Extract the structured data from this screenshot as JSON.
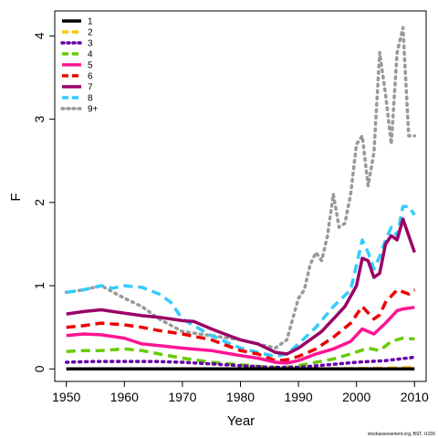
{
  "chart_data": {
    "type": "line",
    "xlabel": "Year",
    "ylabel": "F",
    "xlim": [
      1948,
      2012
    ],
    "ylim": [
      -0.15,
      4.3
    ],
    "xticks": [
      "1950",
      "1960",
      "1970",
      "1980",
      "1990",
      "2000",
      "2010"
    ],
    "yticks": [
      "0",
      "1",
      "2",
      "3",
      "4"
    ],
    "legend_position": "top-left",
    "credit": "stockassessment.org, BST, r1155",
    "series": [
      {
        "name": "1",
        "color": "#000000",
        "dash": "solid",
        "x": [
          1950,
          2010
        ],
        "y": [
          0.0,
          0.0
        ]
      },
      {
        "name": "2",
        "color": "#FFC800",
        "dash": "dash",
        "x": [
          1950,
          1960,
          1970,
          1980,
          1985,
          1990,
          2000,
          2005,
          2010
        ],
        "y": [
          0.0,
          0.0,
          0.0,
          0.0,
          0.0,
          0.0,
          0.005,
          0.01,
          0.02
        ]
      },
      {
        "name": "3",
        "color": "#6600AA",
        "dash": "dot",
        "x": [
          1950,
          1955,
          1960,
          1965,
          1970,
          1975,
          1980,
          1985,
          1990,
          1995,
          2000,
          2005,
          2010
        ],
        "y": [
          0.08,
          0.09,
          0.09,
          0.09,
          0.08,
          0.06,
          0.04,
          0.02,
          0.02,
          0.05,
          0.08,
          0.1,
          0.14
        ]
      },
      {
        "name": "4",
        "color": "#66CC00",
        "dash": "dash",
        "x": [
          1950,
          1953,
          1956,
          1960,
          1963,
          1966,
          1970,
          1975,
          1980,
          1985,
          1988,
          1990,
          1993,
          1996,
          1999,
          2002,
          2004,
          2006,
          2008,
          2010
        ],
        "y": [
          0.21,
          0.22,
          0.22,
          0.24,
          0.22,
          0.18,
          0.13,
          0.08,
          0.05,
          0.02,
          0.02,
          0.04,
          0.08,
          0.12,
          0.18,
          0.25,
          0.22,
          0.33,
          0.37,
          0.36
        ]
      },
      {
        "name": "5",
        "color": "#FF1493",
        "dash": "solid",
        "x": [
          1950,
          1953,
          1956,
          1960,
          1963,
          1966,
          1970,
          1975,
          1980,
          1983,
          1986,
          1988,
          1990,
          1993,
          1996,
          1999,
          2001,
          2003,
          2005,
          2007,
          2008,
          2010
        ],
        "y": [
          0.4,
          0.42,
          0.41,
          0.37,
          0.3,
          0.28,
          0.25,
          0.22,
          0.16,
          0.13,
          0.08,
          0.07,
          0.1,
          0.18,
          0.24,
          0.33,
          0.48,
          0.42,
          0.55,
          0.7,
          0.72,
          0.74
        ]
      },
      {
        "name": "6",
        "color": "#EE0000",
        "dash": "dash",
        "x": [
          1950,
          1953,
          1956,
          1960,
          1963,
          1966,
          1970,
          1975,
          1980,
          1983,
          1986,
          1988,
          1990,
          1993,
          1996,
          1999,
          2001,
          2003,
          2004,
          2005,
          2007,
          2009,
          2010
        ],
        "y": [
          0.5,
          0.52,
          0.55,
          0.53,
          0.5,
          0.46,
          0.42,
          0.35,
          0.22,
          0.18,
          0.1,
          0.11,
          0.15,
          0.24,
          0.38,
          0.55,
          0.75,
          0.6,
          0.65,
          0.8,
          0.95,
          0.9,
          0.95
        ]
      },
      {
        "name": "7",
        "color": "#990066",
        "dash": "solid",
        "x": [
          1950,
          1953,
          1956,
          1960,
          1963,
          1966,
          1970,
          1972,
          1975,
          1978,
          1980,
          1983,
          1986,
          1988,
          1990,
          1992,
          1994,
          1996,
          1998,
          2000,
          2001,
          2002,
          2003,
          2004,
          2005,
          2006,
          2007,
          2008,
          2009,
          2010
        ],
        "y": [
          0.66,
          0.69,
          0.71,
          0.67,
          0.64,
          0.62,
          0.58,
          0.57,
          0.48,
          0.4,
          0.35,
          0.3,
          0.2,
          0.18,
          0.25,
          0.35,
          0.45,
          0.6,
          0.75,
          1.0,
          1.33,
          1.3,
          1.1,
          1.15,
          1.5,
          1.6,
          1.55,
          1.8,
          1.6,
          1.4
        ]
      },
      {
        "name": "8",
        "color": "#33CCFF",
        "dash": "dash",
        "x": [
          1950,
          1953,
          1956,
          1958,
          1960,
          1963,
          1966,
          1968,
          1970,
          1975,
          1980,
          1983,
          1986,
          1988,
          1990,
          1993,
          1996,
          1999,
          2001,
          2002,
          2003,
          2004,
          2005,
          2006,
          2007,
          2008,
          2009,
          2010
        ],
        "y": [
          0.92,
          0.95,
          1.0,
          0.97,
          1.0,
          0.98,
          0.9,
          0.8,
          0.6,
          0.4,
          0.25,
          0.2,
          0.15,
          0.18,
          0.3,
          0.5,
          0.75,
          0.95,
          1.55,
          1.4,
          1.2,
          1.35,
          1.55,
          1.7,
          1.6,
          1.95,
          1.95,
          1.85
        ]
      },
      {
        "name": "9+",
        "color": "#999999",
        "dash": "dot",
        "x": [
          1950,
          1953,
          1956,
          1960,
          1963,
          1966,
          1970,
          1975,
          1980,
          1983,
          1986,
          1988,
          1989,
          1990,
          1991,
          1992,
          1993,
          1994,
          1995,
          1996,
          1997,
          1998,
          1999,
          2000,
          2001,
          2002,
          2003,
          2004,
          2005,
          2006,
          2007,
          2008,
          2009,
          2010
        ],
        "y": [
          0.92,
          0.95,
          1.0,
          0.85,
          0.75,
          0.6,
          0.45,
          0.4,
          0.35,
          0.3,
          0.25,
          0.35,
          0.6,
          0.85,
          0.95,
          1.25,
          1.4,
          1.3,
          1.6,
          2.1,
          1.7,
          1.75,
          2.1,
          2.7,
          2.8,
          2.2,
          2.6,
          3.8,
          3.3,
          2.7,
          3.8,
          4.1,
          2.8,
          2.8
        ]
      }
    ]
  }
}
